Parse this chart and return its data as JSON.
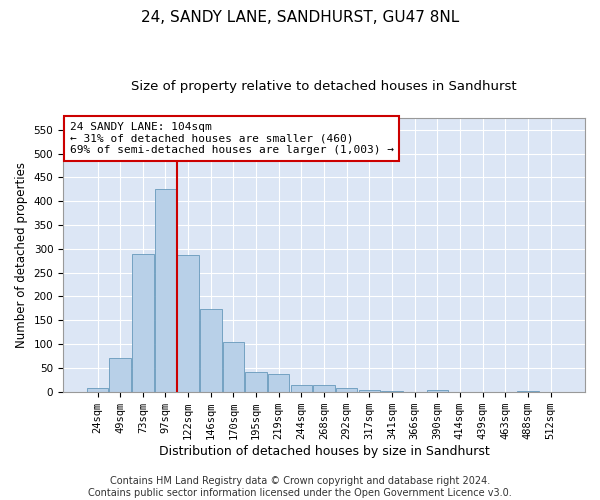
{
  "title": "24, SANDY LANE, SANDHURST, GU47 8NL",
  "subtitle": "Size of property relative to detached houses in Sandhurst",
  "xlabel": "Distribution of detached houses by size in Sandhurst",
  "ylabel": "Number of detached properties",
  "categories": [
    "24sqm",
    "49sqm",
    "73sqm",
    "97sqm",
    "122sqm",
    "146sqm",
    "170sqm",
    "195sqm",
    "219sqm",
    "244sqm",
    "268sqm",
    "292sqm",
    "317sqm",
    "341sqm",
    "366sqm",
    "390sqm",
    "414sqm",
    "439sqm",
    "463sqm",
    "488sqm",
    "512sqm"
  ],
  "values": [
    8,
    70,
    290,
    425,
    287,
    173,
    104,
    42,
    37,
    15,
    15,
    7,
    4,
    2,
    0,
    3,
    0,
    0,
    0,
    2,
    0
  ],
  "bar_color": "#b8d0e8",
  "bar_edge_color": "#6699bb",
  "bg_color": "#dce6f5",
  "grid_color": "#ffffff",
  "annotation_line1": "24 SANDY LANE: 104sqm",
  "annotation_line2": "← 31% of detached houses are smaller (460)",
  "annotation_line3": "69% of semi-detached houses are larger (1,003) →",
  "annotation_box_color": "#ffffff",
  "annotation_box_edge_color": "#cc0000",
  "vline_color": "#cc0000",
  "vline_x_index": 3.5,
  "ylim": [
    0,
    575
  ],
  "yticks": [
    0,
    50,
    100,
    150,
    200,
    250,
    300,
    350,
    400,
    450,
    500,
    550
  ],
  "footer_line1": "Contains HM Land Registry data © Crown copyright and database right 2024.",
  "footer_line2": "Contains public sector information licensed under the Open Government Licence v3.0.",
  "title_fontsize": 11,
  "subtitle_fontsize": 9.5,
  "xlabel_fontsize": 9,
  "ylabel_fontsize": 8.5,
  "tick_fontsize": 7.5,
  "annot_fontsize": 8,
  "footer_fontsize": 7
}
